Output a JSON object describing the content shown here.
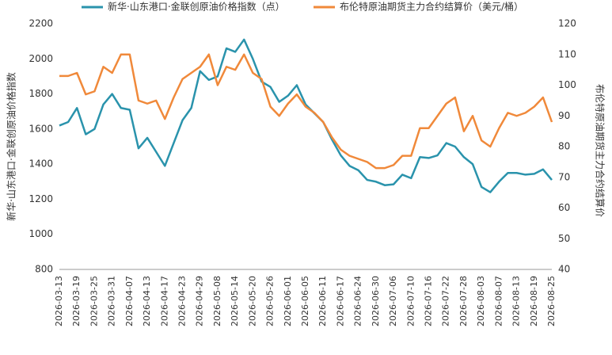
{
  "chart_data": {
    "type": "line",
    "legend": "top",
    "ylabel": "新华·山东港口·金联创原油价格指数",
    "y2label": "布伦特原油期货主力合约结算价",
    "ylim": [
      800,
      2200
    ],
    "yticks": [
      800,
      1000,
      1200,
      1400,
      1600,
      1800,
      2000,
      2200
    ],
    "y2lim": [
      40,
      120
    ],
    "y2ticks": [
      40,
      50,
      60,
      70,
      80,
      90,
      100,
      110,
      120
    ],
    "categories": [
      "2026-03-13",
      null,
      "2026-03-19",
      null,
      "2026-03-25",
      null,
      "2026-03-31",
      null,
      "2026-04-07",
      null,
      "2026-04-13",
      null,
      "2026-04-17",
      null,
      "2026-04-23",
      null,
      "2026-04-29",
      null,
      "2026-05-08",
      null,
      "2026-05-14",
      null,
      "2026-05-20",
      null,
      "2026-05-26",
      null,
      "2026-06-01",
      null,
      "2026-06-05",
      null,
      "2026-06-11",
      null,
      "2026-06-17",
      null,
      "2026-06-24",
      null,
      "2026-06-30",
      null,
      "2026-07-06",
      null,
      "2026-07-10",
      null,
      "2026-07-16",
      null,
      "2026-07-22",
      null,
      "2026-07-28",
      null,
      "2026-08-03",
      null,
      "2026-08-07",
      null,
      "2026-08-13",
      null,
      "2026-08-19",
      null,
      "2026-08-25"
    ],
    "series": [
      {
        "name": "新华·山东港口·金联创原油价格指数（点）",
        "color": "#2a93ac",
        "values": [
          1620,
          1640,
          1720,
          1570,
          1600,
          1740,
          1800,
          1720,
          1710,
          1490,
          1550,
          1470,
          1390,
          1520,
          1650,
          1720,
          1930,
          1880,
          1900,
          2060,
          2040,
          2110,
          2000,
          1870,
          1840,
          1755,
          1790,
          1850,
          1740,
          1690,
          1640,
          1540,
          1450,
          1390,
          1365,
          1310,
          1300,
          1280,
          1285,
          1340,
          1320,
          1440,
          1435,
          1450,
          1520,
          1500,
          1440,
          1400,
          1270,
          1240,
          1300,
          1350,
          1350,
          1340,
          1345,
          1370,
          1310
        ]
      },
      {
        "name": "布伦特原油期货主力合约结算价（美元/桶）",
        "color": "#f0893a",
        "axis": "y2",
        "values": [
          103,
          103,
          104,
          97,
          98,
          106,
          104,
          110,
          110,
          95,
          94,
          95,
          89,
          96,
          102,
          104,
          106,
          110,
          100,
          106,
          105,
          110,
          104,
          102,
          93,
          90,
          94,
          97,
          93,
          91,
          88,
          83,
          79,
          77,
          76,
          75,
          73,
          73,
          74,
          77,
          77,
          86,
          86,
          90,
          94,
          96,
          85,
          90,
          82,
          80,
          86,
          91,
          90,
          91,
          93,
          96,
          88
        ]
      }
    ]
  }
}
